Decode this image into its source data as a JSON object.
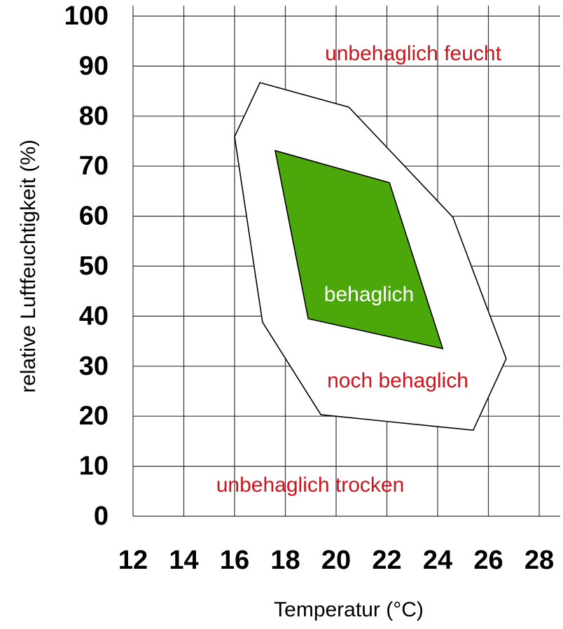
{
  "chart_data": {
    "type": "polygon",
    "xlabel": "Temperatur (°C)",
    "ylabel": "relative Luftfeuchtigkeit (%)",
    "xlim": [
      12,
      28
    ],
    "xticks": [
      12,
      14,
      16,
      18,
      20,
      22,
      24,
      26,
      28
    ],
    "ylim": [
      0,
      100
    ],
    "yticks": [
      0,
      10,
      20,
      30,
      40,
      50,
      60,
      70,
      80,
      90,
      100
    ],
    "grid": true,
    "series": [
      {
        "name": "noch behaglich",
        "color": "#ffffff",
        "stroke": "#000000",
        "x": [
          17,
          20.5,
          24.6,
          26.7,
          25.4,
          19.4,
          17.1,
          16
        ],
        "values": [
          86.7,
          81.8,
          59.8,
          31.5,
          17.2,
          20.3,
          38.8,
          75.9
        ]
      },
      {
        "name": "behaglich",
        "color": "#4ca80a",
        "stroke": "#000000",
        "x": [
          17.6,
          22.1,
          24.2,
          18.9
        ],
        "values": [
          73.1,
          66.7,
          33.5,
          39.5
        ]
      }
    ],
    "annotations": [
      "unbehaglich feucht",
      "behaglich",
      "noch behaglich",
      "unbehaglich trocken"
    ]
  }
}
